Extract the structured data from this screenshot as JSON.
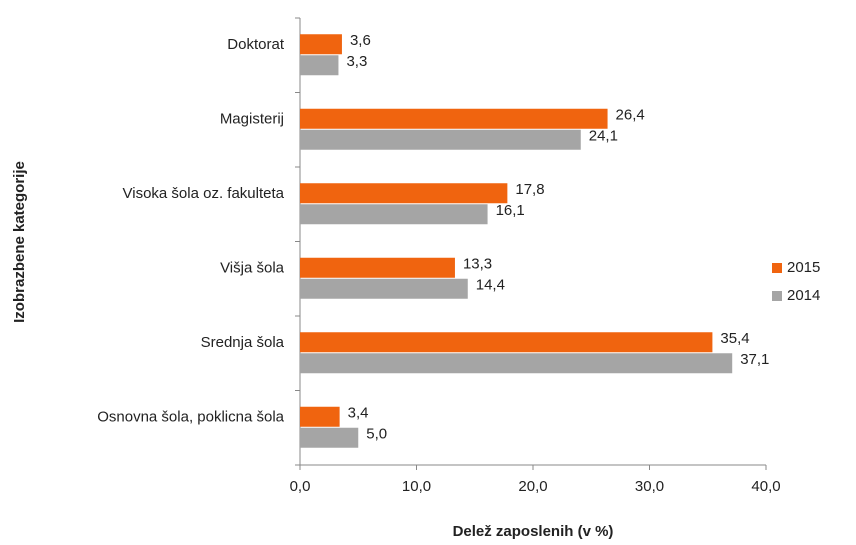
{
  "chart_data": {
    "type": "barh",
    "x_label": "Delež zaposlenih (v %)",
    "y_label": "Izobrazbene kategorije",
    "categories": [
      "Doktorat",
      "Magisterij",
      "Visoka šola oz. fakulteta",
      "Višja šola",
      "Srednja šola",
      "Osnovna šola, poklicna šola"
    ],
    "series": [
      {
        "name": "2015",
        "color": "#f0640f",
        "values": [
          3.6,
          26.4,
          17.8,
          13.3,
          35.4,
          3.4
        ],
        "value_labels": [
          "3,6",
          "26,4",
          "17,8",
          "13,3",
          "35,4",
          "3,4"
        ]
      },
      {
        "name": "2014",
        "color": "#a5a5a5",
        "values": [
          3.3,
          24.1,
          16.1,
          14.4,
          37.1,
          5.0
        ],
        "value_labels": [
          "3,3",
          "24,1",
          "16,1",
          "14,4",
          "37,1",
          "5,0"
        ]
      }
    ],
    "xlim": [
      0,
      40
    ],
    "xticks": [
      {
        "value": 0,
        "label": "0,0"
      },
      {
        "value": 10,
        "label": "10,0"
      },
      {
        "value": 20,
        "label": "20,0"
      },
      {
        "value": 30,
        "label": "30,0"
      },
      {
        "value": 40,
        "label": "40,0"
      }
    ],
    "legend": "right"
  }
}
